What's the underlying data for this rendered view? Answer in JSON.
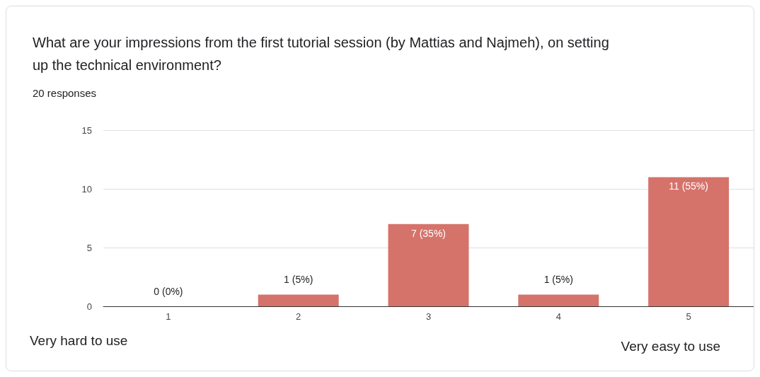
{
  "chart_data": {
    "type": "bar",
    "title": "What are your impressions from the first tutorial session (by Mattias and Najmeh), on setting\nup the technical environment?",
    "subtitle": "20 responses",
    "categories": [
      "1",
      "2",
      "3",
      "4",
      "5"
    ],
    "values": [
      0,
      1,
      7,
      1,
      11
    ],
    "value_labels": [
      "0 (0%)",
      "1 (5%)",
      "7 (35%)",
      "1 (5%)",
      "11 (55%)"
    ],
    "color": "#d5736b",
    "ylim": [
      0,
      15
    ],
    "yticks": [
      0,
      5,
      10,
      15
    ],
    "grid": "y",
    "annotations": [
      "Very hard to use",
      "Very easy to use"
    ]
  }
}
